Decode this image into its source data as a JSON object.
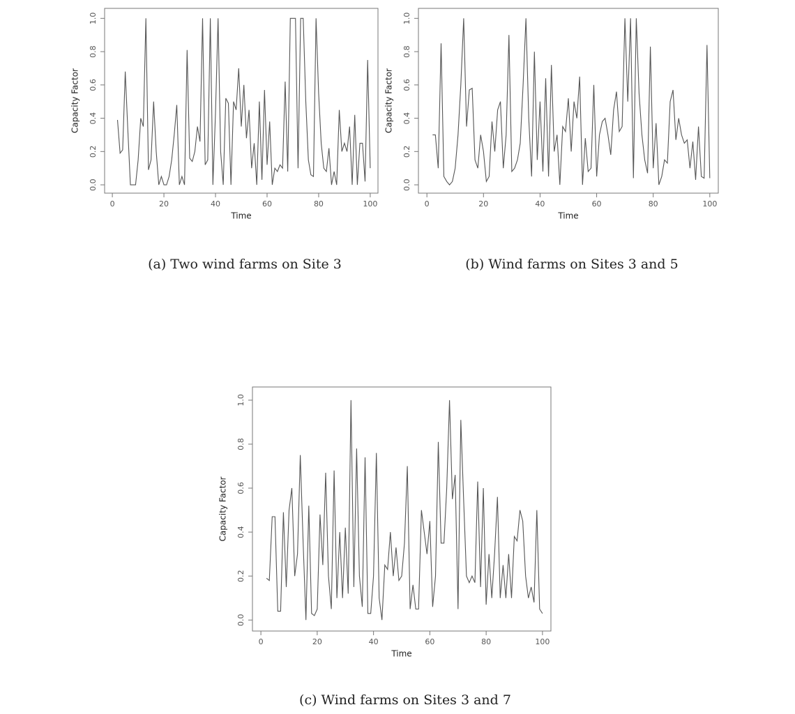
{
  "chart_data": [
    {
      "type": "line",
      "caption": "(a) Two wind farms on Site 3",
      "y_label": "Capacity Factor",
      "x_label": "Time",
      "color": "#555555",
      "x": [
        2,
        3,
        4,
        5,
        6,
        7,
        8,
        9,
        10,
        11,
        12,
        13,
        14,
        15,
        16,
        17,
        18,
        19,
        20,
        21,
        22,
        23,
        24,
        25,
        26,
        27,
        28,
        29,
        30,
        31,
        32,
        33,
        34,
        35,
        36,
        37,
        38,
        39,
        40,
        41,
        42,
        43,
        44,
        45,
        46,
        47,
        48,
        49,
        50,
        51,
        52,
        53,
        54,
        55,
        56,
        57,
        58,
        59,
        60,
        61,
        62,
        63,
        64,
        65,
        66,
        67,
        68,
        69,
        70,
        71,
        72,
        73,
        74,
        75,
        76,
        77,
        78,
        79,
        80,
        81,
        82,
        83,
        84,
        85,
        86,
        87,
        88,
        89,
        90,
        91,
        92,
        93,
        94,
        95,
        96,
        97,
        98,
        99,
        100
      ],
      "values": [
        0.39,
        0.19,
        0.21,
        0.68,
        0.33,
        0,
        0,
        0,
        0.15,
        0.4,
        0.35,
        1.0,
        0.09,
        0.15,
        0.5,
        0.2,
        0,
        0.05,
        0,
        0,
        0.05,
        0.15,
        0.3,
        0.48,
        0,
        0.05,
        0,
        0.81,
        0.16,
        0.14,
        0.2,
        0.35,
        0.26,
        1.0,
        0.12,
        0.15,
        1.0,
        0,
        0.43,
        1.0,
        0.2,
        0,
        0.52,
        0.49,
        0,
        0.5,
        0.45,
        0.7,
        0.35,
        0.6,
        0.28,
        0.45,
        0.1,
        0.25,
        0,
        0.5,
        0.03,
        0.57,
        0.12,
        0.38,
        0,
        0.1,
        0.08,
        0.12,
        0.1,
        0.62,
        0.08,
        1.0,
        1.0,
        1.0,
        0.1,
        1.0,
        1.0,
        0.5,
        0.15,
        0.06,
        0.05,
        1.0,
        0.55,
        0.25,
        0.1,
        0.08,
        0.22,
        0,
        0.08,
        0,
        0.45,
        0.2,
        0.25,
        0.2,
        0.35,
        0,
        0.42,
        0,
        0.25,
        0.25,
        0.02,
        0.75,
        0.1
      ],
      "xlim": [
        -3,
        103
      ],
      "ylim": [
        -0.05,
        1.06
      ],
      "xticks": [
        0,
        20,
        40,
        60,
        80,
        100
      ],
      "yticks": [
        {
          "value": 0,
          "label": "0.0"
        },
        0.2,
        0.4,
        0.6,
        0.8,
        {
          "value": 1,
          "label": "1.0"
        }
      ]
    },
    {
      "type": "line",
      "caption": "(b) Wind farms on Sites 3 and 5",
      "y_label": "Capacity Factor",
      "x_label": "Time",
      "color": "#555555",
      "x": [
        2,
        3,
        4,
        5,
        6,
        7,
        8,
        9,
        10,
        11,
        12,
        13,
        14,
        15,
        16,
        17,
        18,
        19,
        20,
        21,
        22,
        23,
        24,
        25,
        26,
        27,
        28,
        29,
        30,
        31,
        32,
        33,
        34,
        35,
        36,
        37,
        38,
        39,
        40,
        41,
        42,
        43,
        44,
        45,
        46,
        47,
        48,
        49,
        50,
        51,
        52,
        53,
        54,
        55,
        56,
        57,
        58,
        59,
        60,
        61,
        62,
        63,
        64,
        65,
        66,
        67,
        68,
        69,
        70,
        71,
        72,
        73,
        74,
        75,
        76,
        77,
        78,
        79,
        80,
        81,
        82,
        83,
        84,
        85,
        86,
        87,
        88,
        89,
        90,
        91,
        92,
        93,
        94,
        95,
        96,
        97,
        98,
        99,
        100
      ],
      "values": [
        0.3,
        0.3,
        0.1,
        0.85,
        0.05,
        0.02,
        0,
        0.02,
        0.1,
        0.3,
        0.6,
        1.0,
        0.35,
        0.57,
        0.58,
        0.15,
        0.1,
        0.3,
        0.2,
        0.02,
        0.05,
        0.38,
        0.2,
        0.45,
        0.5,
        0.1,
        0.3,
        0.9,
        0.08,
        0.1,
        0.15,
        0.25,
        0.6,
        1.0,
        0.4,
        0.05,
        0.8,
        0.15,
        0.5,
        0.08,
        0.64,
        0.05,
        0.72,
        0.2,
        0.3,
        0,
        0.35,
        0.32,
        0.52,
        0.2,
        0.5,
        0.4,
        0.65,
        0,
        0.28,
        0.08,
        0.1,
        0.6,
        0.05,
        0.3,
        0.38,
        0.4,
        0.3,
        0.18,
        0.45,
        0.56,
        0.32,
        0.35,
        1.0,
        0.5,
        1.0,
        0.04,
        1.0,
        0.55,
        0.3,
        0.15,
        0.07,
        0.83,
        0.1,
        0.37,
        0,
        0.05,
        0.15,
        0.13,
        0.5,
        0.57,
        0.27,
        0.4,
        0.3,
        0.25,
        0.27,
        0.1,
        0.26,
        0.03,
        0.35,
        0.05,
        0.04,
        0.84,
        0.04
      ],
      "xlim": [
        -3,
        103
      ],
      "ylim": [
        -0.05,
        1.06
      ],
      "xticks": [
        0,
        20,
        40,
        60,
        80,
        100
      ],
      "yticks": [
        {
          "value": 0,
          "label": "0.0"
        },
        0.2,
        0.4,
        0.6,
        0.8,
        {
          "value": 1,
          "label": "1.0"
        }
      ]
    },
    {
      "type": "line",
      "caption": "(c) Wind farms on Sites 3 and 7",
      "y_label": "Capacity Factor",
      "x_label": "Time",
      "color": "#555555",
      "x": [
        2,
        3,
        4,
        5,
        6,
        7,
        8,
        9,
        10,
        11,
        12,
        13,
        14,
        15,
        16,
        17,
        18,
        19,
        20,
        21,
        22,
        23,
        24,
        25,
        26,
        27,
        28,
        29,
        30,
        31,
        32,
        33,
        34,
        35,
        36,
        37,
        38,
        39,
        40,
        41,
        42,
        43,
        44,
        45,
        46,
        47,
        48,
        49,
        50,
        51,
        52,
        53,
        54,
        55,
        56,
        57,
        58,
        59,
        60,
        61,
        62,
        63,
        64,
        65,
        66,
        67,
        68,
        69,
        70,
        71,
        72,
        73,
        74,
        75,
        76,
        77,
        78,
        79,
        80,
        81,
        82,
        83,
        84,
        85,
        86,
        87,
        88,
        89,
        90,
        91,
        92,
        93,
        94,
        95,
        96,
        97,
        98,
        99,
        100
      ],
      "values": [
        0.19,
        0.18,
        0.47,
        0.47,
        0.04,
        0.04,
        0.49,
        0.15,
        0.5,
        0.6,
        0.2,
        0.3,
        0.75,
        0.35,
        0,
        0.52,
        0.03,
        0.02,
        0.05,
        0.48,
        0.25,
        0.67,
        0.2,
        0.05,
        0.68,
        0.1,
        0.4,
        0.1,
        0.42,
        0.12,
        1.0,
        0.15,
        0.78,
        0.2,
        0.06,
        0.74,
        0.03,
        0.03,
        0.2,
        0.76,
        0.1,
        0,
        0.25,
        0.23,
        0.4,
        0.2,
        0.33,
        0.18,
        0.2,
        0.35,
        0.7,
        0.05,
        0.16,
        0.05,
        0.05,
        0.5,
        0.4,
        0.3,
        0.45,
        0.06,
        0.2,
        0.81,
        0.35,
        0.35,
        0.6,
        1.0,
        0.55,
        0.66,
        0.05,
        0.91,
        0.55,
        0.2,
        0.17,
        0.2,
        0.17,
        0.63,
        0.15,
        0.6,
        0.07,
        0.3,
        0.1,
        0.3,
        0.56,
        0.1,
        0.25,
        0.1,
        0.3,
        0.1,
        0.38,
        0.36,
        0.5,
        0.45,
        0.2,
        0.1,
        0.15,
        0.08,
        0.5,
        0.05,
        0.03
      ],
      "xlim": [
        -3,
        103
      ],
      "ylim": [
        -0.05,
        1.06
      ],
      "xticks": [
        0,
        20,
        40,
        60,
        80,
        100
      ],
      "yticks": [
        {
          "value": 0,
          "label": "0.0"
        },
        0.2,
        0.4,
        0.6,
        0.8,
        {
          "value": 1,
          "label": "1.0"
        }
      ]
    }
  ]
}
